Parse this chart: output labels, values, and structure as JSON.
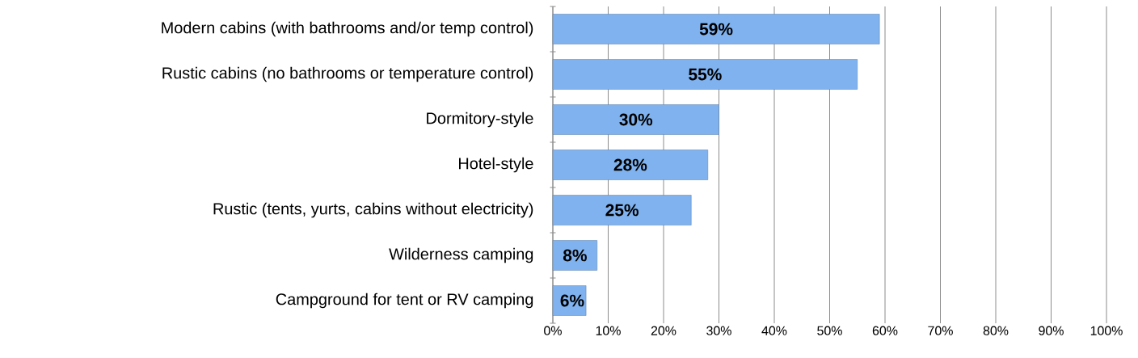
{
  "chart_data": {
    "type": "bar",
    "orientation": "horizontal",
    "categories": [
      "Modern cabins (with bathrooms and/or temp control)",
      "Rustic cabins (no bathrooms or temperature control)",
      "Dormitory-style",
      "Hotel-style",
      "Rustic (tents, yurts, cabins without electricity)",
      "Wilderness camping",
      "Campground for tent or RV camping"
    ],
    "values": [
      59,
      55,
      30,
      28,
      25,
      8,
      6
    ],
    "value_labels": [
      "59%",
      "55%",
      "30%",
      "28%",
      "25%",
      "8%",
      "6%"
    ],
    "color": "#7fb2ee",
    "xlim": [
      0,
      100
    ],
    "xticks": [
      {
        "value": 0,
        "label": "0%"
      },
      {
        "value": 10,
        "label": "10%"
      },
      {
        "value": 20,
        "label": "20%"
      },
      {
        "value": 30,
        "label": "30%"
      },
      {
        "value": 40,
        "label": "40%"
      },
      {
        "value": 50,
        "label": "50%"
      },
      {
        "value": 60,
        "label": "60%"
      },
      {
        "value": 70,
        "label": "70%"
      },
      {
        "value": 80,
        "label": "80%"
      },
      {
        "value": 90,
        "label": "90%"
      },
      {
        "value": 100,
        "label": "100%"
      }
    ],
    "grid": "x"
  }
}
